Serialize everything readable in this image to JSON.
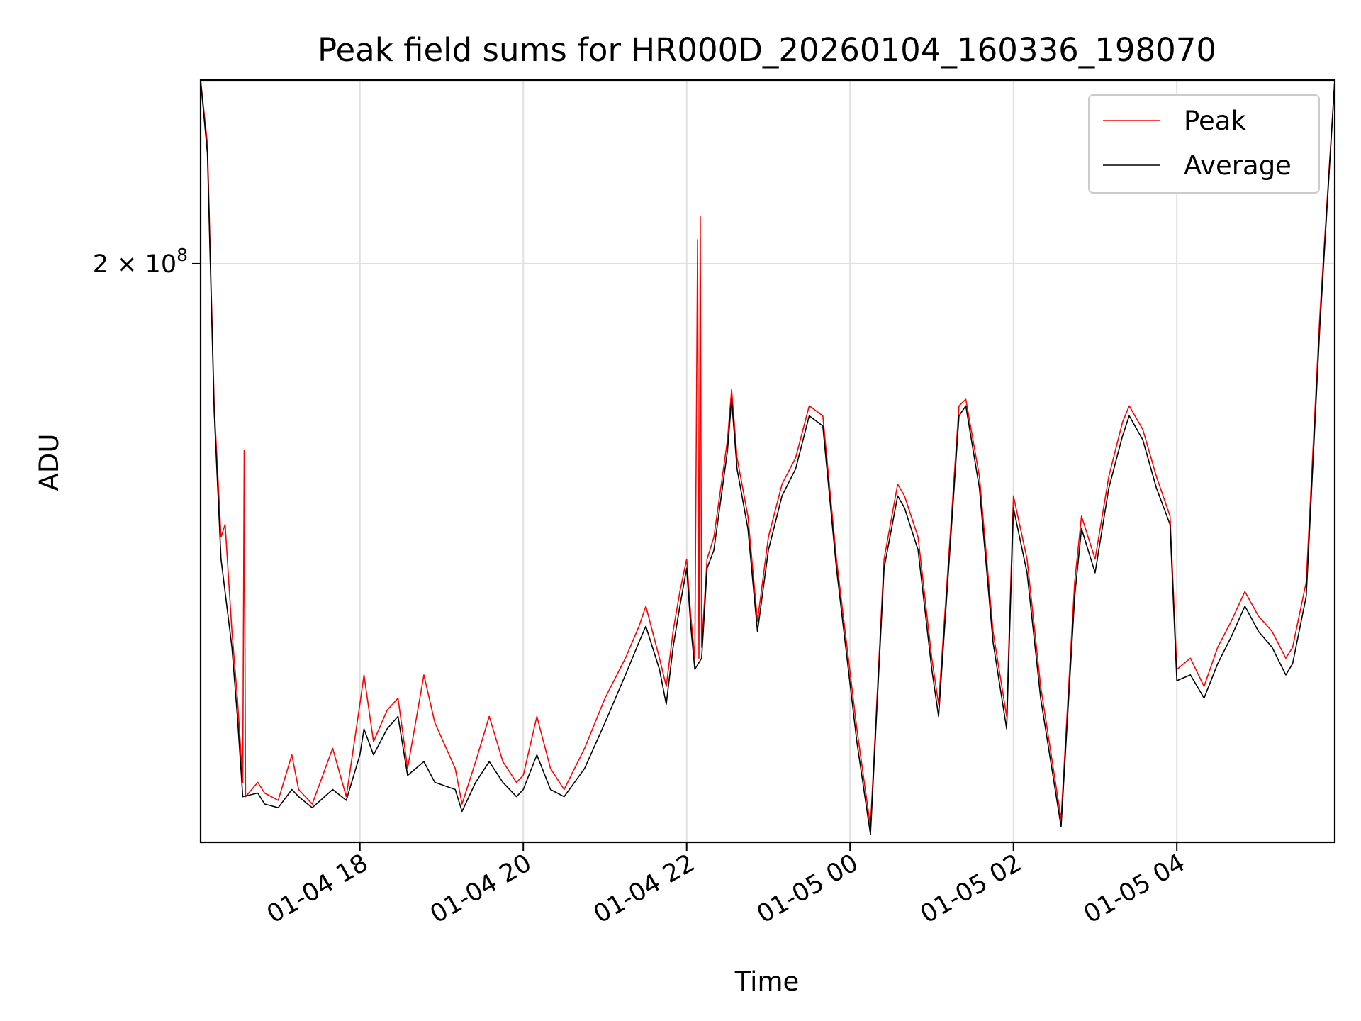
{
  "chart_data": {
    "type": "line",
    "title": "Peak field sums for HR000D_20260104_160336_198070",
    "xlabel": "Time",
    "ylabel": "ADU",
    "yscale": "log",
    "xlim": [
      "2026-01-04 16:03",
      "2026-01-05 05:56"
    ],
    "ylim": [
      62000000,
      290000000
    ],
    "x_ticks": [
      "01-04 18",
      "01-04 20",
      "01-04 22",
      "01-05 00",
      "01-05 02",
      "01-05 04"
    ],
    "y_ticks": [
      {
        "value": 200000000,
        "label": "2 × 10^8",
        "mantissa": "2 × 10",
        "exponent": "8"
      }
    ],
    "grid": true,
    "legend_position": "top-right",
    "series": [
      {
        "name": "Peak",
        "color": "#ff0000",
        "points": [
          [
            "2026-01-04 16:03",
            290000000
          ],
          [
            "2026-01-04 16:08",
            255000000
          ],
          [
            "2026-01-04 16:13",
            150000000
          ],
          [
            "2026-01-04 16:18",
            115000000
          ],
          [
            "2026-01-04 16:21",
            118000000
          ],
          [
            "2026-01-04 16:26",
            95000000
          ],
          [
            "2026-01-04 16:30",
            83000000
          ],
          [
            "2026-01-04 16:34",
            70000000
          ],
          [
            "2026-01-04 16:35",
            137000000
          ],
          [
            "2026-01-04 16:36",
            68000000
          ],
          [
            "2026-01-04 16:45",
            70000000
          ],
          [
            "2026-01-04 16:50",
            68500000
          ],
          [
            "2026-01-04 17:00",
            67500000
          ],
          [
            "2026-01-04 17:10",
            74000000
          ],
          [
            "2026-01-04 17:15",
            69000000
          ],
          [
            "2026-01-04 17:25",
            67000000
          ],
          [
            "2026-01-04 17:40",
            75000000
          ],
          [
            "2026-01-04 17:50",
            68000000
          ],
          [
            "2026-01-04 18:00",
            82000000
          ],
          [
            "2026-01-04 18:03",
            87000000
          ],
          [
            "2026-01-04 18:10",
            76000000
          ],
          [
            "2026-01-04 18:20",
            81000000
          ],
          [
            "2026-01-04 18:28",
            83000000
          ],
          [
            "2026-01-04 18:35",
            72000000
          ],
          [
            "2026-01-04 18:47",
            87000000
          ],
          [
            "2026-01-04 18:55",
            79000000
          ],
          [
            "2026-01-04 19:10",
            72000000
          ],
          [
            "2026-01-04 19:15",
            67000000
          ],
          [
            "2026-01-04 19:25",
            73000000
          ],
          [
            "2026-01-04 19:35",
            80000000
          ],
          [
            "2026-01-04 19:45",
            73000000
          ],
          [
            "2026-01-04 19:55",
            70000000
          ],
          [
            "2026-01-04 20:00",
            71000000
          ],
          [
            "2026-01-04 20:10",
            80000000
          ],
          [
            "2026-01-04 20:20",
            72000000
          ],
          [
            "2026-01-04 20:30",
            69000000
          ],
          [
            "2026-01-04 20:45",
            75000000
          ],
          [
            "2026-01-04 21:00",
            83000000
          ],
          [
            "2026-01-04 21:15",
            90000000
          ],
          [
            "2026-01-04 21:25",
            96000000
          ],
          [
            "2026-01-04 21:30",
            100000000
          ],
          [
            "2026-01-04 21:40",
            90000000
          ],
          [
            "2026-01-04 21:45",
            85000000
          ],
          [
            "2026-01-04 21:50",
            95000000
          ],
          [
            "2026-01-04 21:55",
            103000000
          ],
          [
            "2026-01-04 22:00",
            110000000
          ],
          [
            "2026-01-04 22:03",
            98000000
          ],
          [
            "2026-01-04 22:06",
            90000000
          ],
          [
            "2026-01-04 22:08",
            210000000
          ],
          [
            "2026-01-04 22:09",
            90000000
          ],
          [
            "2026-01-04 22:10",
            220000000
          ],
          [
            "2026-01-04 22:11",
            92000000
          ],
          [
            "2026-01-04 22:15",
            110000000
          ],
          [
            "2026-01-04 22:20",
            115000000
          ],
          [
            "2026-01-04 22:30",
            140000000
          ],
          [
            "2026-01-04 22:33",
            155000000
          ],
          [
            "2026-01-04 22:37",
            135000000
          ],
          [
            "2026-01-04 22:45",
            120000000
          ],
          [
            "2026-01-04 22:52",
            97000000
          ],
          [
            "2026-01-04 23:00",
            115000000
          ],
          [
            "2026-01-04 23:10",
            128000000
          ],
          [
            "2026-01-04 23:20",
            135000000
          ],
          [
            "2026-01-04 23:30",
            150000000
          ],
          [
            "2026-01-04 23:40",
            147000000
          ],
          [
            "2026-01-04 23:50",
            110000000
          ],
          [
            "2026-01-05 00:05",
            78000000
          ],
          [
            "2026-01-05 00:15",
            64000000
          ],
          [
            "2026-01-05 00:25",
            110000000
          ],
          [
            "2026-01-05 00:35",
            128000000
          ],
          [
            "2026-01-05 00:40",
            125000000
          ],
          [
            "2026-01-05 00:50",
            115000000
          ],
          [
            "2026-01-05 01:00",
            90000000
          ],
          [
            "2026-01-05 01:05",
            82000000
          ],
          [
            "2026-01-05 01:10",
            100000000
          ],
          [
            "2026-01-05 01:20",
            150000000
          ],
          [
            "2026-01-05 01:25",
            152000000
          ],
          [
            "2026-01-05 01:35",
            130000000
          ],
          [
            "2026-01-05 01:45",
            95000000
          ],
          [
            "2026-01-05 01:55",
            80000000
          ],
          [
            "2026-01-05 02:00",
            125000000
          ],
          [
            "2026-01-05 02:10",
            110000000
          ],
          [
            "2026-01-05 02:20",
            85000000
          ],
          [
            "2026-01-05 02:35",
            65000000
          ],
          [
            "2026-01-05 02:45",
            105000000
          ],
          [
            "2026-01-05 02:50",
            120000000
          ],
          [
            "2026-01-05 03:00",
            110000000
          ],
          [
            "2026-01-05 03:10",
            130000000
          ],
          [
            "2026-01-05 03:20",
            145000000
          ],
          [
            "2026-01-05 03:25",
            150000000
          ],
          [
            "2026-01-05 03:35",
            143000000
          ],
          [
            "2026-01-05 03:45",
            130000000
          ],
          [
            "2026-01-05 03:55",
            120000000
          ],
          [
            "2026-01-05 04:00",
            88000000
          ],
          [
            "2026-01-05 04:10",
            90000000
          ],
          [
            "2026-01-05 04:20",
            85000000
          ],
          [
            "2026-01-05 04:30",
            92000000
          ],
          [
            "2026-01-05 04:40",
            97000000
          ],
          [
            "2026-01-05 04:50",
            103000000
          ],
          [
            "2026-01-05 05:00",
            98000000
          ],
          [
            "2026-01-05 05:10",
            95000000
          ],
          [
            "2026-01-05 05:20",
            90000000
          ],
          [
            "2026-01-05 05:25",
            92000000
          ],
          [
            "2026-01-05 05:35",
            105000000
          ],
          [
            "2026-01-05 05:45",
            180000000
          ],
          [
            "2026-01-05 05:56",
            290000000
          ]
        ]
      },
      {
        "name": "Average",
        "color": "#000000",
        "points": [
          [
            "2026-01-04 16:03",
            290000000
          ],
          [
            "2026-01-04 16:08",
            250000000
          ],
          [
            "2026-01-04 16:13",
            148000000
          ],
          [
            "2026-01-04 16:18",
            110000000
          ],
          [
            "2026-01-04 16:26",
            92000000
          ],
          [
            "2026-01-04 16:30",
            80000000
          ],
          [
            "2026-01-04 16:34",
            68000000
          ],
          [
            "2026-01-04 16:45",
            68500000
          ],
          [
            "2026-01-04 16:50",
            67000000
          ],
          [
            "2026-01-04 17:00",
            66500000
          ],
          [
            "2026-01-04 17:10",
            69000000
          ],
          [
            "2026-01-04 17:15",
            68000000
          ],
          [
            "2026-01-04 17:25",
            66500000
          ],
          [
            "2026-01-04 17:40",
            69000000
          ],
          [
            "2026-01-04 17:50",
            67500000
          ],
          [
            "2026-01-04 18:00",
            74000000
          ],
          [
            "2026-01-04 18:03",
            78000000
          ],
          [
            "2026-01-04 18:10",
            74000000
          ],
          [
            "2026-01-04 18:20",
            78000000
          ],
          [
            "2026-01-04 18:28",
            80000000
          ],
          [
            "2026-01-04 18:35",
            71000000
          ],
          [
            "2026-01-04 18:47",
            73000000
          ],
          [
            "2026-01-04 18:55",
            70000000
          ],
          [
            "2026-01-04 19:10",
            69000000
          ],
          [
            "2026-01-04 19:15",
            66000000
          ],
          [
            "2026-01-04 19:25",
            70000000
          ],
          [
            "2026-01-04 19:35",
            73000000
          ],
          [
            "2026-01-04 19:45",
            70000000
          ],
          [
            "2026-01-04 19:55",
            68000000
          ],
          [
            "2026-01-04 20:00",
            69000000
          ],
          [
            "2026-01-04 20:10",
            74000000
          ],
          [
            "2026-01-04 20:20",
            69000000
          ],
          [
            "2026-01-04 20:30",
            68000000
          ],
          [
            "2026-01-04 20:45",
            72000000
          ],
          [
            "2026-01-04 21:00",
            79000000
          ],
          [
            "2026-01-04 21:15",
            87000000
          ],
          [
            "2026-01-04 21:25",
            93000000
          ],
          [
            "2026-01-04 21:30",
            96000000
          ],
          [
            "2026-01-04 21:40",
            88000000
          ],
          [
            "2026-01-04 21:45",
            82000000
          ],
          [
            "2026-01-04 21:50",
            92000000
          ],
          [
            "2026-01-04 21:55",
            100000000
          ],
          [
            "2026-01-04 22:00",
            108000000
          ],
          [
            "2026-01-04 22:03",
            96000000
          ],
          [
            "2026-01-04 22:06",
            88000000
          ],
          [
            "2026-01-04 22:11",
            90000000
          ],
          [
            "2026-01-04 22:15",
            108000000
          ],
          [
            "2026-01-04 22:20",
            112000000
          ],
          [
            "2026-01-04 22:30",
            137000000
          ],
          [
            "2026-01-04 22:33",
            152000000
          ],
          [
            "2026-01-04 22:37",
            132000000
          ],
          [
            "2026-01-04 22:45",
            117000000
          ],
          [
            "2026-01-04 22:52",
            95000000
          ],
          [
            "2026-01-04 23:00",
            112000000
          ],
          [
            "2026-01-04 23:10",
            125000000
          ],
          [
            "2026-01-04 23:20",
            132000000
          ],
          [
            "2026-01-04 23:30",
            147000000
          ],
          [
            "2026-01-04 23:40",
            144000000
          ],
          [
            "2026-01-04 23:50",
            108000000
          ],
          [
            "2026-01-05 00:05",
            76000000
          ],
          [
            "2026-01-05 00:15",
            63000000
          ],
          [
            "2026-01-05 00:25",
            108000000
          ],
          [
            "2026-01-05 00:35",
            125000000
          ],
          [
            "2026-01-05 00:40",
            122000000
          ],
          [
            "2026-01-05 00:50",
            112000000
          ],
          [
            "2026-01-05 01:00",
            88000000
          ],
          [
            "2026-01-05 01:05",
            80000000
          ],
          [
            "2026-01-05 01:10",
            98000000
          ],
          [
            "2026-01-05 01:20",
            147000000
          ],
          [
            "2026-01-05 01:25",
            150000000
          ],
          [
            "2026-01-05 01:35",
            127000000
          ],
          [
            "2026-01-05 01:45",
            93000000
          ],
          [
            "2026-01-05 01:55",
            78000000
          ],
          [
            "2026-01-05 02:00",
            122000000
          ],
          [
            "2026-01-05 02:10",
            107000000
          ],
          [
            "2026-01-05 02:20",
            83000000
          ],
          [
            "2026-01-05 02:35",
            64000000
          ],
          [
            "2026-01-05 02:45",
            102000000
          ],
          [
            "2026-01-05 02:50",
            117000000
          ],
          [
            "2026-01-05 03:00",
            107000000
          ],
          [
            "2026-01-05 03:10",
            127000000
          ],
          [
            "2026-01-05 03:20",
            141000000
          ],
          [
            "2026-01-05 03:25",
            147000000
          ],
          [
            "2026-01-05 03:35",
            140000000
          ],
          [
            "2026-01-05 03:45",
            127000000
          ],
          [
            "2026-01-05 03:55",
            118000000
          ],
          [
            "2026-01-05 04:00",
            86000000
          ],
          [
            "2026-01-05 04:10",
            87000000
          ],
          [
            "2026-01-05 04:20",
            83000000
          ],
          [
            "2026-01-05 04:30",
            89000000
          ],
          [
            "2026-01-05 04:40",
            94000000
          ],
          [
            "2026-01-05 04:50",
            100000000
          ],
          [
            "2026-01-05 05:00",
            95000000
          ],
          [
            "2026-01-05 05:10",
            92000000
          ],
          [
            "2026-01-05 05:20",
            87000000
          ],
          [
            "2026-01-05 05:25",
            89000000
          ],
          [
            "2026-01-05 05:35",
            102000000
          ],
          [
            "2026-01-05 05:45",
            176000000
          ],
          [
            "2026-01-05 05:56",
            290000000
          ]
        ]
      }
    ]
  }
}
